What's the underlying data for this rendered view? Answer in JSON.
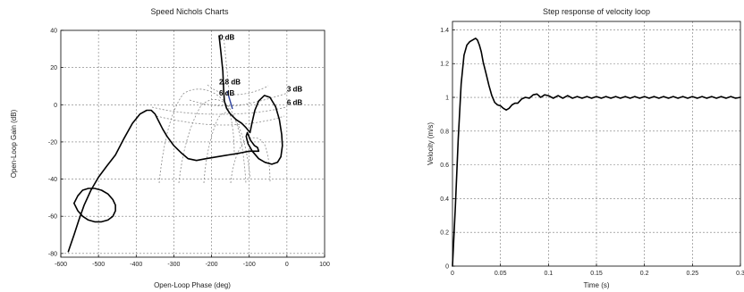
{
  "chart_data": [
    {
      "type": "line",
      "subtype": "nichols",
      "title": "Speed Nichols Charts",
      "xlabel": "Open-Loop Phase (deg)",
      "ylabel": "Open-Loop Gain (dB)",
      "xlim": [
        -600,
        100
      ],
      "ylim": [
        -82,
        40
      ],
      "xticks": [
        -600,
        -500,
        -400,
        -300,
        -200,
        -100,
        0,
        100
      ],
      "yticks": [
        -80,
        -60,
        -40,
        -20,
        0,
        20,
        40
      ],
      "grid": true,
      "annotations": [
        {
          "text": "0 dB",
          "x": -180,
          "y": 35
        },
        {
          "text": "2.8 dB",
          "x": -180,
          "y": 11
        },
        {
          "text": "6 dB",
          "x": -180,
          "y": 5
        },
        {
          "text": "3 dB",
          "x": 0,
          "y": 7
        },
        {
          "text": "6 dB",
          "x": 0,
          "y": 0
        }
      ],
      "series": [
        {
          "color": "#000000",
          "x": [
            -180,
            -175,
            -170,
            -168,
            -166,
            -160,
            -150,
            -135,
            -120,
            -110,
            -102,
            -98,
            -93,
            -85,
            -75,
            -60,
            -45,
            -30,
            -20,
            -14,
            -12,
            -16,
            -25,
            -40,
            -58,
            -75,
            -92,
            -103,
            -108,
            -105,
            -97,
            -86,
            -78,
            -75,
            -82,
            -100,
            -125,
            -155,
            -185,
            -215,
            -240,
            -262,
            -280,
            -300,
            -318,
            -330,
            -340,
            -350,
            -360,
            -372,
            -390,
            -410,
            -432,
            -455,
            -478,
            -500,
            -520,
            -538,
            -552,
            -565,
            -575,
            -580
          ],
          "y": [
            37,
            28,
            18,
            8,
            2,
            -2,
            -5,
            -8,
            -10,
            -12,
            -14,
            -15,
            -10,
            -3,
            2,
            5,
            4,
            -1,
            -8,
            -16,
            -22,
            -28,
            -31,
            -32,
            -31,
            -29,
            -25,
            -21,
            -17,
            -15,
            -19,
            -22,
            -23,
            -25,
            -25,
            -25,
            -26,
            -27,
            -28,
            -29,
            -30,
            -29,
            -26,
            -22,
            -17,
            -13,
            -9,
            -5,
            -3,
            -3,
            -5,
            -10,
            -18,
            -27,
            -33,
            -39,
            -46,
            -54,
            -62,
            -70,
            -76,
            -79
          ]
        },
        {
          "color": "#000000",
          "x": [
            -565,
            -555,
            -542,
            -527,
            -510,
            -492,
            -475,
            -462,
            -455,
            -455,
            -462,
            -475,
            -492,
            -510,
            -527,
            -542,
            -555,
            -565
          ],
          "y": [
            -53,
            -49,
            -46,
            -45,
            -45,
            -46,
            -48,
            -51,
            -54,
            -57,
            -60,
            -62,
            -63,
            -63,
            -62,
            -60,
            -57,
            -53
          ]
        }
      ]
    },
    {
      "type": "line",
      "title": "Step response of velocity loop",
      "xlabel": "Time (s)",
      "ylabel": "Velocity (m/s)",
      "xlim": [
        0,
        0.3
      ],
      "ylim": [
        0,
        1.45
      ],
      "xticks": [
        0,
        0.05,
        0.1,
        0.15,
        0.2,
        0.25,
        0.3
      ],
      "xtick_labels": [
        "0",
        "0.05",
        "0.1",
        "0.15",
        "0.2",
        "0.25",
        "0.3"
      ],
      "yticks": [
        0,
        0.2,
        0.4,
        0.6,
        0.8,
        1.0,
        1.2,
        1.4
      ],
      "ytick_labels": [
        "0",
        "0.2",
        "0.4",
        "0.6",
        "0.8",
        "1",
        "1.2",
        "1.4"
      ],
      "grid": true,
      "series": [
        {
          "color": "#000000",
          "x": [
            0,
            0.003,
            0.006,
            0.009,
            0.012,
            0.015,
            0.018,
            0.021,
            0.024,
            0.026,
            0.028,
            0.03,
            0.032,
            0.035,
            0.038,
            0.041,
            0.044,
            0.047,
            0.05,
            0.053,
            0.056,
            0.059,
            0.062,
            0.065,
            0.068,
            0.072,
            0.076,
            0.08,
            0.084,
            0.088,
            0.092,
            0.096,
            0.1,
            0.105,
            0.11,
            0.115,
            0.12,
            0.125,
            0.13,
            0.135,
            0.14,
            0.145,
            0.15,
            0.155,
            0.16,
            0.165,
            0.17,
            0.175,
            0.18,
            0.185,
            0.19,
            0.195,
            0.2,
            0.205,
            0.21,
            0.215,
            0.22,
            0.225,
            0.23,
            0.235,
            0.24,
            0.245,
            0.25,
            0.255,
            0.26,
            0.265,
            0.27,
            0.275,
            0.28,
            0.285,
            0.29,
            0.295,
            0.3
          ],
          "y": [
            0.0,
            0.35,
            0.75,
            1.08,
            1.25,
            1.31,
            1.33,
            1.34,
            1.35,
            1.34,
            1.31,
            1.27,
            1.21,
            1.14,
            1.07,
            1.01,
            0.97,
            0.955,
            0.95,
            0.935,
            0.925,
            0.935,
            0.955,
            0.965,
            0.965,
            0.99,
            1.0,
            0.995,
            1.015,
            1.02,
            1.0,
            1.015,
            1.01,
            0.995,
            1.01,
            0.995,
            1.01,
            0.995,
            1.005,
            0.995,
            1.005,
            0.995,
            1.005,
            0.995,
            1.005,
            0.995,
            1.005,
            0.995,
            1.005,
            0.995,
            1.005,
            0.995,
            1.005,
            0.995,
            1.005,
            0.995,
            1.005,
            0.995,
            1.005,
            0.995,
            1.005,
            0.995,
            1.005,
            0.995,
            1.005,
            0.995,
            1.005,
            0.995,
            1.005,
            0.995,
            1.005,
            0.995,
            1.0
          ]
        }
      ]
    }
  ]
}
